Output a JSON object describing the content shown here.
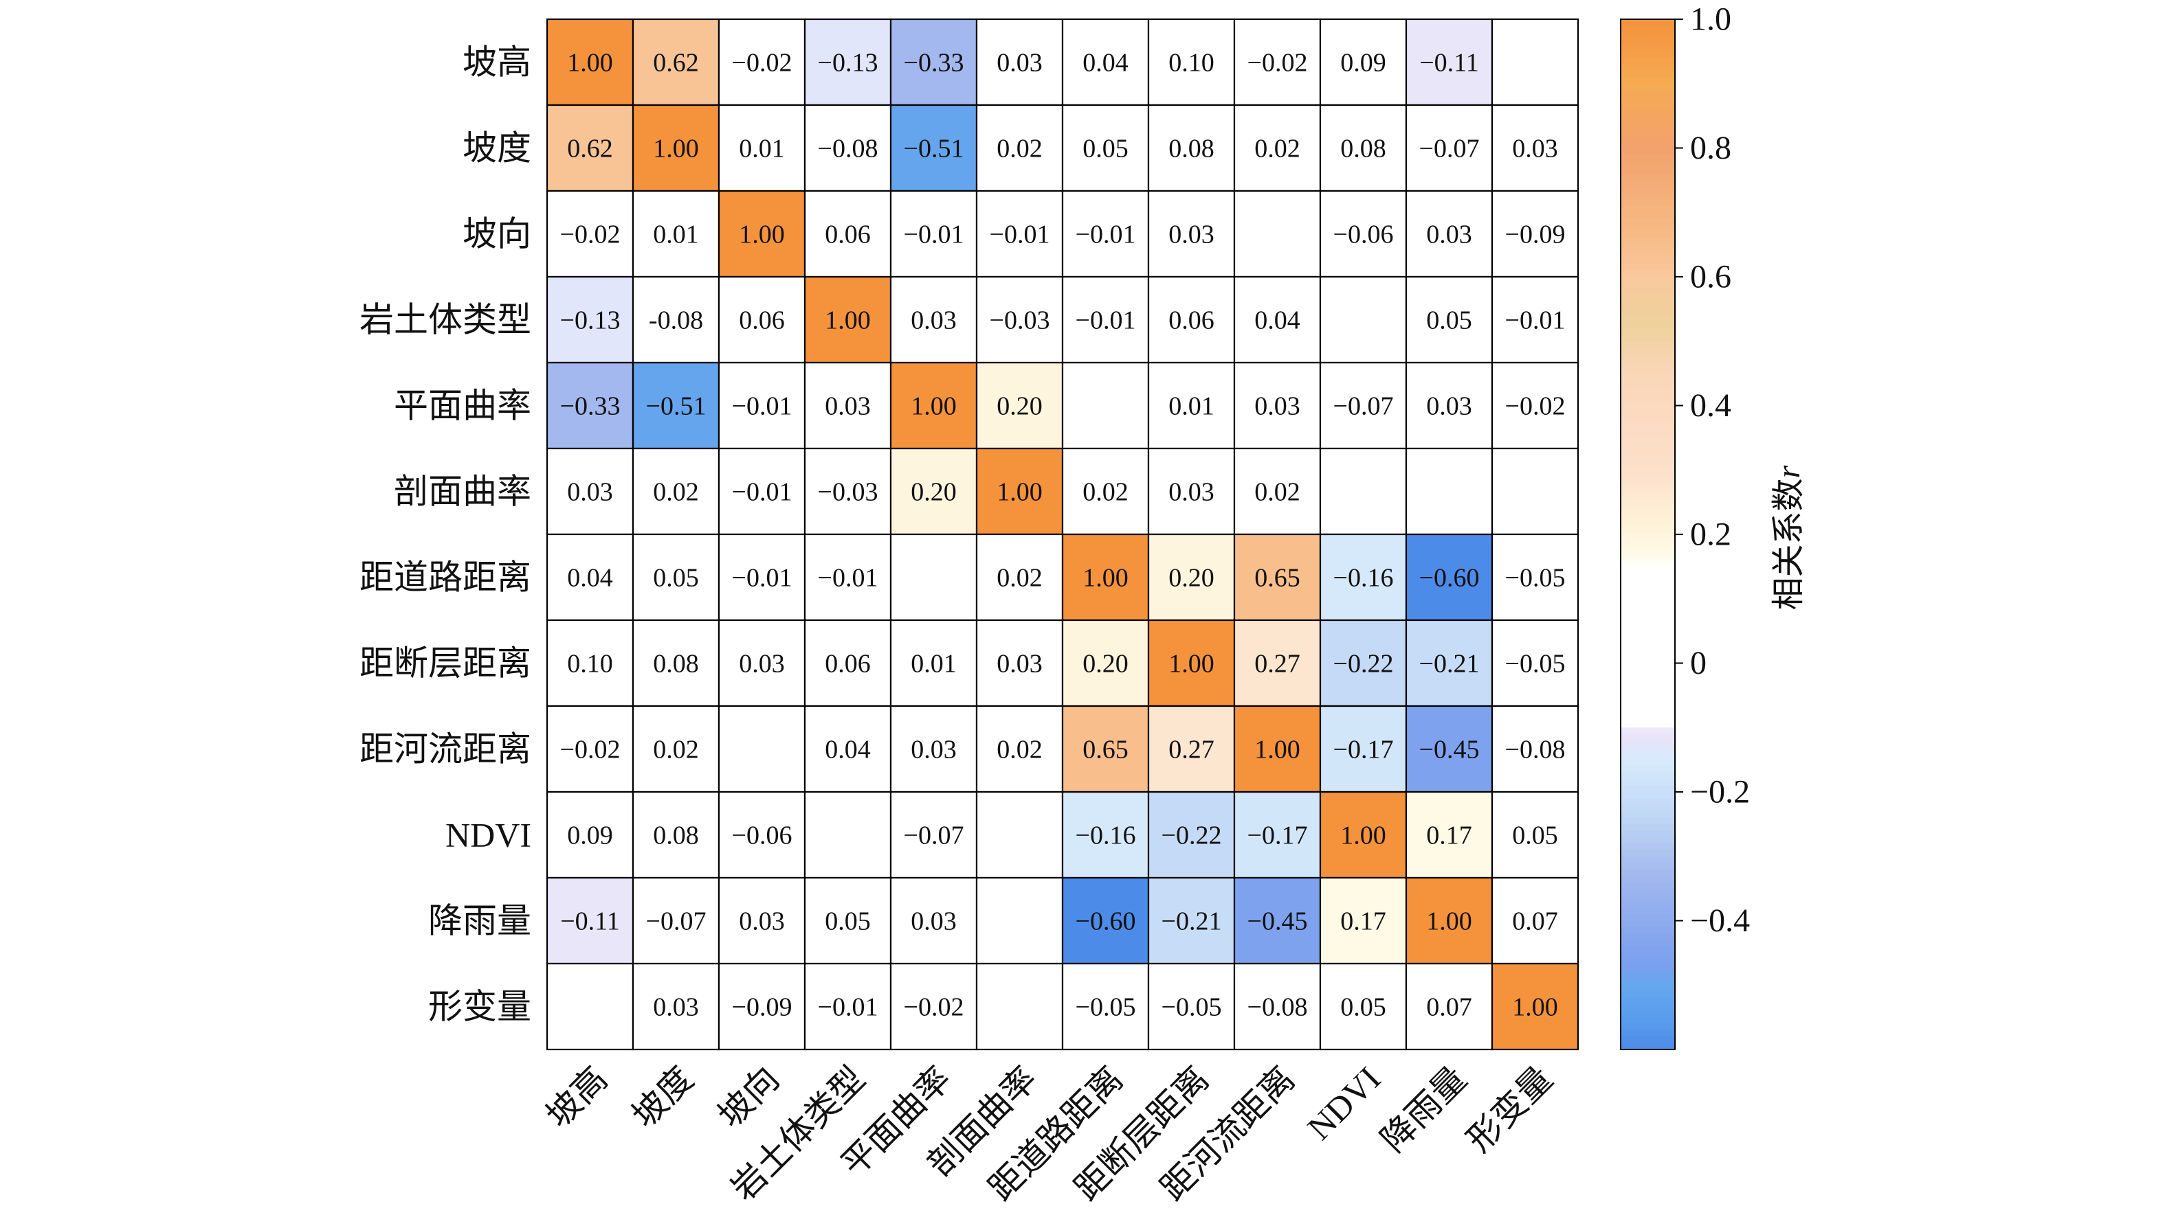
{
  "chart_data": {
    "type": "heatmap",
    "grid": true,
    "row_labels": [
      "坡高",
      "坡度",
      "坡向",
      "岩土体类型",
      "平面曲率",
      "剖面曲率",
      "距道路距离",
      "距断层距离",
      "距河流距离",
      "NDVI",
      "降雨量",
      "形变量"
    ],
    "column_labels": [
      "坡高",
      "坡度",
      "坡向",
      "岩土体类型",
      "平面曲率",
      "剖面曲率",
      "距道路距离",
      "距断层距离",
      "距河流距离",
      "NDVI",
      "降雨量",
      "形变量"
    ],
    "values": [
      [
        1.0,
        0.62,
        -0.02,
        -0.13,
        -0.33,
        0.03,
        0.04,
        0.1,
        -0.02,
        0.09,
        -0.11,
        null
      ],
      [
        0.62,
        1.0,
        0.01,
        -0.08,
        -0.51,
        0.02,
        0.05,
        0.08,
        0.02,
        0.08,
        -0.07,
        0.03
      ],
      [
        -0.02,
        0.01,
        1.0,
        0.06,
        -0.01,
        -0.01,
        -0.01,
        0.03,
        null,
        -0.06,
        0.03,
        -0.09
      ],
      [
        -0.13,
        -0.08,
        0.06,
        1.0,
        0.03,
        -0.03,
        -0.01,
        0.06,
        0.04,
        null,
        0.05,
        -0.01
      ],
      [
        -0.33,
        -0.51,
        -0.01,
        0.03,
        1.0,
        0.2,
        null,
        0.01,
        0.03,
        -0.07,
        0.03,
        -0.02
      ],
      [
        0.03,
        0.02,
        -0.01,
        -0.03,
        0.2,
        1.0,
        0.02,
        0.03,
        0.02,
        null,
        null,
        null
      ],
      [
        0.04,
        0.05,
        -0.01,
        -0.01,
        null,
        0.02,
        1.0,
        0.2,
        0.65,
        -0.16,
        -0.6,
        -0.05
      ],
      [
        0.1,
        0.08,
        0.03,
        0.06,
        0.01,
        0.03,
        0.2,
        1.0,
        0.27,
        -0.22,
        -0.21,
        -0.05
      ],
      [
        -0.02,
        0.02,
        null,
        0.04,
        0.03,
        0.02,
        0.65,
        0.27,
        1.0,
        -0.17,
        -0.45,
        -0.08
      ],
      [
        0.09,
        0.08,
        -0.06,
        null,
        -0.07,
        null,
        -0.16,
        -0.22,
        -0.17,
        1.0,
        0.17,
        0.05
      ],
      [
        -0.11,
        -0.07,
        0.03,
        0.05,
        0.03,
        null,
        -0.6,
        -0.21,
        -0.45,
        0.17,
        1.0,
        0.07
      ],
      [
        null,
        0.03,
        -0.09,
        -0.01,
        -0.02,
        null,
        -0.05,
        -0.05,
        -0.08,
        0.05,
        0.07,
        1.0
      ]
    ],
    "labels": [
      [
        "1.00",
        "0.62",
        "−0.02",
        "−0.13",
        "−0.33",
        "0.03",
        "0.04",
        "0.10",
        "−0.02",
        "0.09",
        "−0.11",
        ""
      ],
      [
        "0.62",
        "1.00",
        "0.01",
        "−0.08",
        "−0.51",
        "0.02",
        "0.05",
        "0.08",
        "0.02",
        "0.08",
        "−0.07",
        "0.03"
      ],
      [
        "−0.02",
        "0.01",
        "1.00",
        "0.06",
        "−0.01",
        "−0.01",
        "−0.01",
        "0.03",
        "",
        "−0.06",
        "0.03",
        "−0.09"
      ],
      [
        "−0.13",
        "-0.08",
        "0.06",
        "1.00",
        "0.03",
        "−0.03",
        "−0.01",
        "0.06",
        "0.04",
        "",
        "0.05",
        "−0.01"
      ],
      [
        "−0.33",
        "−0.51",
        "−0.01",
        "0.03",
        "1.00",
        "0.20",
        "",
        "0.01",
        "0.03",
        "−0.07",
        "0.03",
        "−0.02"
      ],
      [
        "0.03",
        "0.02",
        "−0.01",
        "−0.03",
        "0.20",
        "1.00",
        "0.02",
        "0.03",
        "0.02",
        "",
        "",
        ""
      ],
      [
        "0.04",
        "0.05",
        "−0.01",
        "−0.01",
        "",
        "0.02",
        "1.00",
        "0.20",
        "0.65",
        "−0.16",
        "−0.60",
        "−0.05"
      ],
      [
        "0.10",
        "0.08",
        "0.03",
        "0.06",
        "0.01",
        "0.03",
        "0.20",
        "1.00",
        "0.27",
        "−0.22",
        "−0.21",
        "−0.05"
      ],
      [
        "−0.02",
        "0.02",
        "",
        "0.04",
        "0.03",
        "0.02",
        "0.65",
        "0.27",
        "1.00",
        "−0.17",
        "−0.45",
        "−0.08"
      ],
      [
        "0.09",
        "0.08",
        "−0.06",
        "",
        "−0.07",
        "",
        "−0.16",
        "−0.22",
        "−0.17",
        "1.00",
        "0.17",
        "0.05"
      ],
      [
        "−0.11",
        "−0.07",
        "0.03",
        "0.05",
        "0.03",
        "",
        "−0.60",
        "−0.21",
        "−0.45",
        "0.17",
        "1.00",
        "0.07"
      ],
      [
        "",
        "0.03",
        "−0.09",
        "−0.01",
        "−0.02",
        "",
        "−0.05",
        "−0.05",
        "−0.08",
        "0.05",
        "0.07",
        "1.00"
      ]
    ],
    "colorbar": {
      "label": "相关系数",
      "label_suffix": "r",
      "range": [
        -0.6,
        1.0
      ],
      "ticks": [
        1.0,
        0.8,
        0.6,
        0.4,
        0.2,
        0,
        -0.2,
        -0.4
      ],
      "tick_labels": [
        "1.0",
        "0.8",
        "0.6",
        "0.4",
        "0.2",
        "0",
        "−0.2",
        "−0.4"
      ],
      "placement": "right"
    },
    "colormap": [
      {
        "value": -0.6,
        "color": "#4D8BE8"
      },
      {
        "value": -0.55,
        "color": "#5A9DEC"
      },
      {
        "value": -0.5,
        "color": "#67A7EF"
      },
      {
        "value": -0.47,
        "color": "#7A9FEE"
      },
      {
        "value": -0.4,
        "color": "#8DABEE"
      },
      {
        "value": -0.33,
        "color": "#A2B8EE"
      },
      {
        "value": -0.25,
        "color": "#BCD3F4"
      },
      {
        "value": -0.2,
        "color": "#CADFF8"
      },
      {
        "value": -0.15,
        "color": "#D8EBFC"
      },
      {
        "value": -0.12,
        "color": "#E6E3F9"
      },
      {
        "value": -0.105,
        "color": "#ECE8FA"
      },
      {
        "value": -0.1,
        "color": "#FFFFFF"
      },
      {
        "value": 0.15,
        "color": "#FFFFFF"
      },
      {
        "value": 0.17,
        "color": "#FFFAE6"
      },
      {
        "value": 0.22,
        "color": "#FEF1D8"
      },
      {
        "value": 0.3,
        "color": "#FCE0CB"
      },
      {
        "value": 0.45,
        "color": "#FBD6B8"
      },
      {
        "value": 0.52,
        "color": "#EED29D"
      },
      {
        "value": 0.6,
        "color": "#F9C89D"
      },
      {
        "value": 0.67,
        "color": "#F7BA85"
      },
      {
        "value": 0.8,
        "color": "#F2A26C"
      },
      {
        "value": 0.9,
        "color": "#F6AA52"
      },
      {
        "value": 1.0,
        "color": "#F5923C"
      }
    ]
  }
}
